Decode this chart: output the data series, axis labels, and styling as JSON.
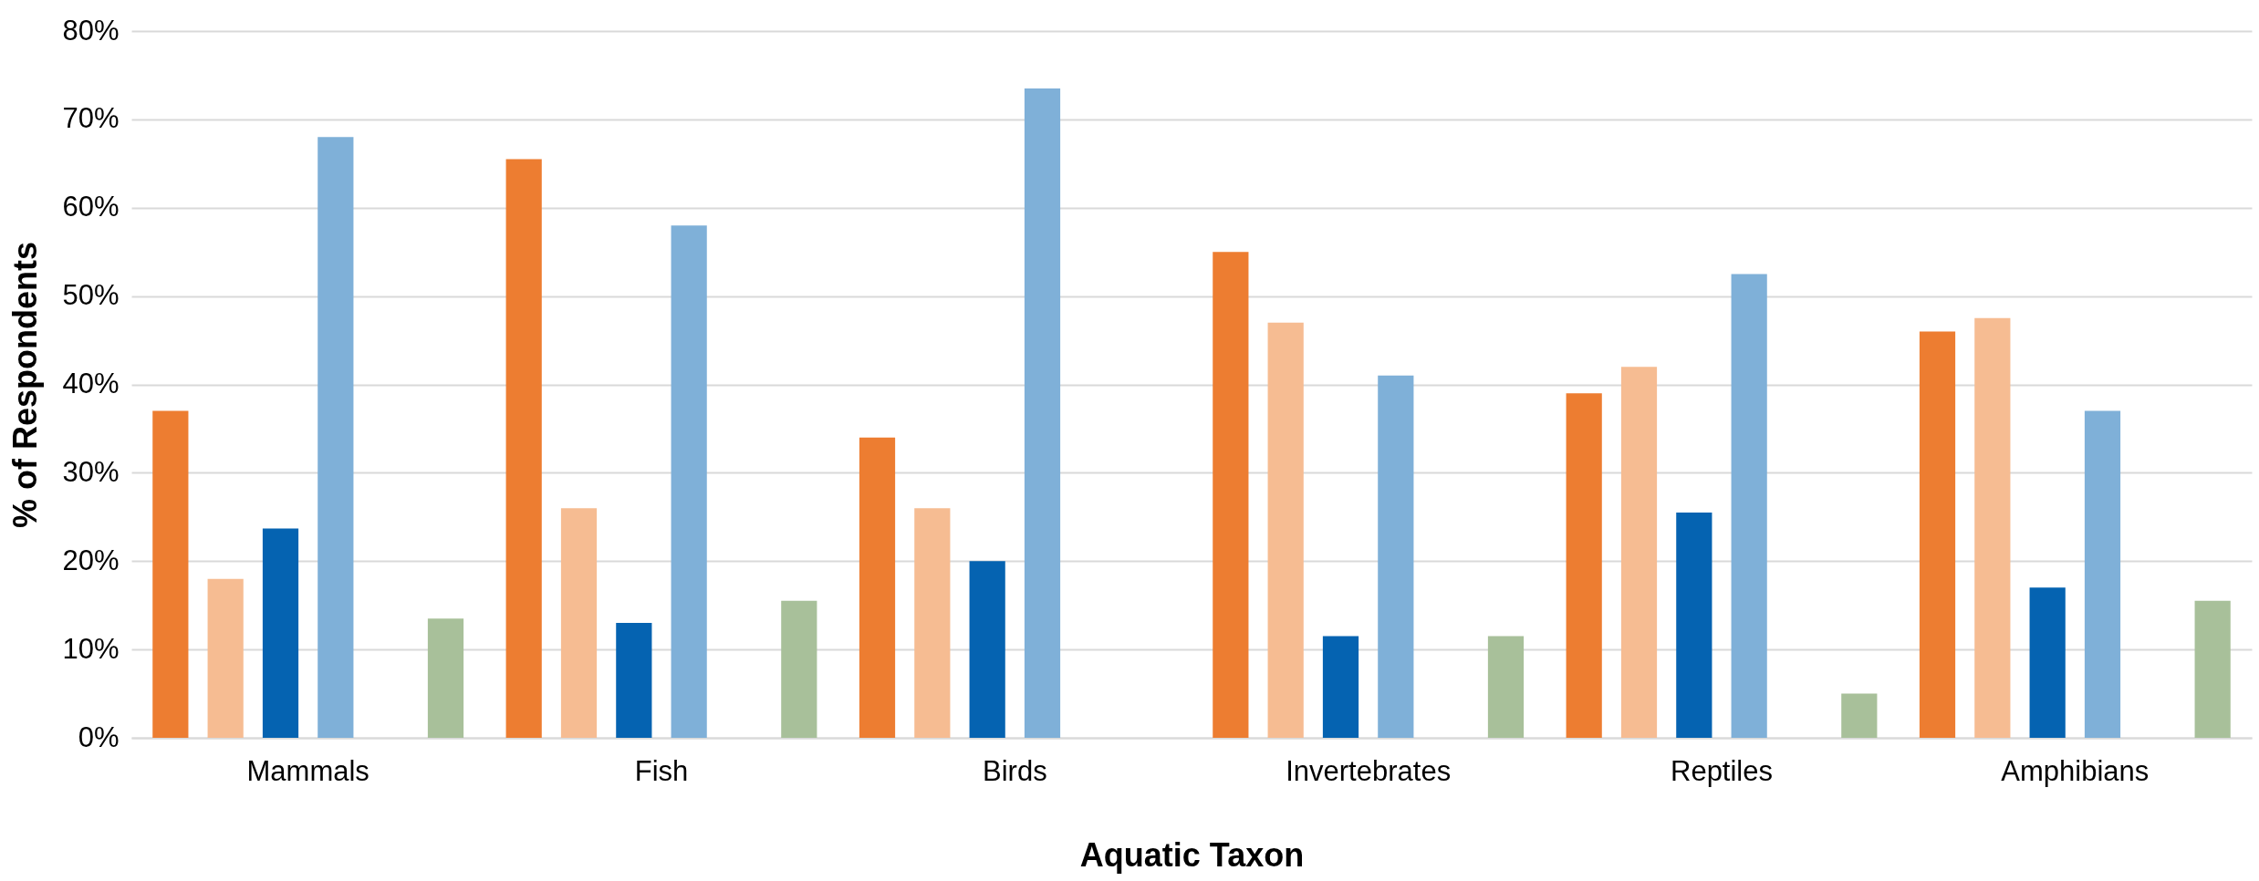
{
  "chart_data": {
    "type": "bar",
    "xlabel": "Aquatic Taxon",
    "ylabel": "% of Respondents",
    "categories": [
      "Mammals",
      "Fish",
      "Birds",
      "Invertebrates",
      "Reptiles",
      "Amphibians"
    ],
    "series": [
      {
        "color": "#ed7d31",
        "values": [
          37,
          65.5,
          34,
          55,
          39,
          46
        ]
      },
      {
        "color": "#f6bc92",
        "values": [
          18,
          26,
          26,
          47,
          42,
          47.5
        ]
      },
      {
        "color": "#0563b1",
        "values": [
          23.7,
          13,
          20,
          11.5,
          25.5,
          17
        ]
      },
      {
        "color": "#7fb0d8",
        "values": [
          68,
          58,
          73.5,
          41,
          52.5,
          37
        ]
      },
      {
        "color": "#548235",
        "values": [
          null,
          null,
          null,
          null,
          null,
          null
        ]
      },
      {
        "color": "#a8c09a",
        "values": [
          13.5,
          15.5,
          null,
          11.5,
          5,
          15.5
        ]
      }
    ],
    "ylim": [
      0,
      80
    ],
    "yticks": [
      {
        "value": 0,
        "label": "0%"
      },
      {
        "value": 10,
        "label": "10%"
      },
      {
        "value": 20,
        "label": "20%"
      },
      {
        "value": 30,
        "label": "30%"
      },
      {
        "value": 40,
        "label": "40%"
      },
      {
        "value": 50,
        "label": "50%"
      },
      {
        "value": 60,
        "label": "60%"
      },
      {
        "value": 70,
        "label": "70%"
      },
      {
        "value": 80,
        "label": "80%"
      }
    ],
    "grid": "y",
    "legend": false
  }
}
